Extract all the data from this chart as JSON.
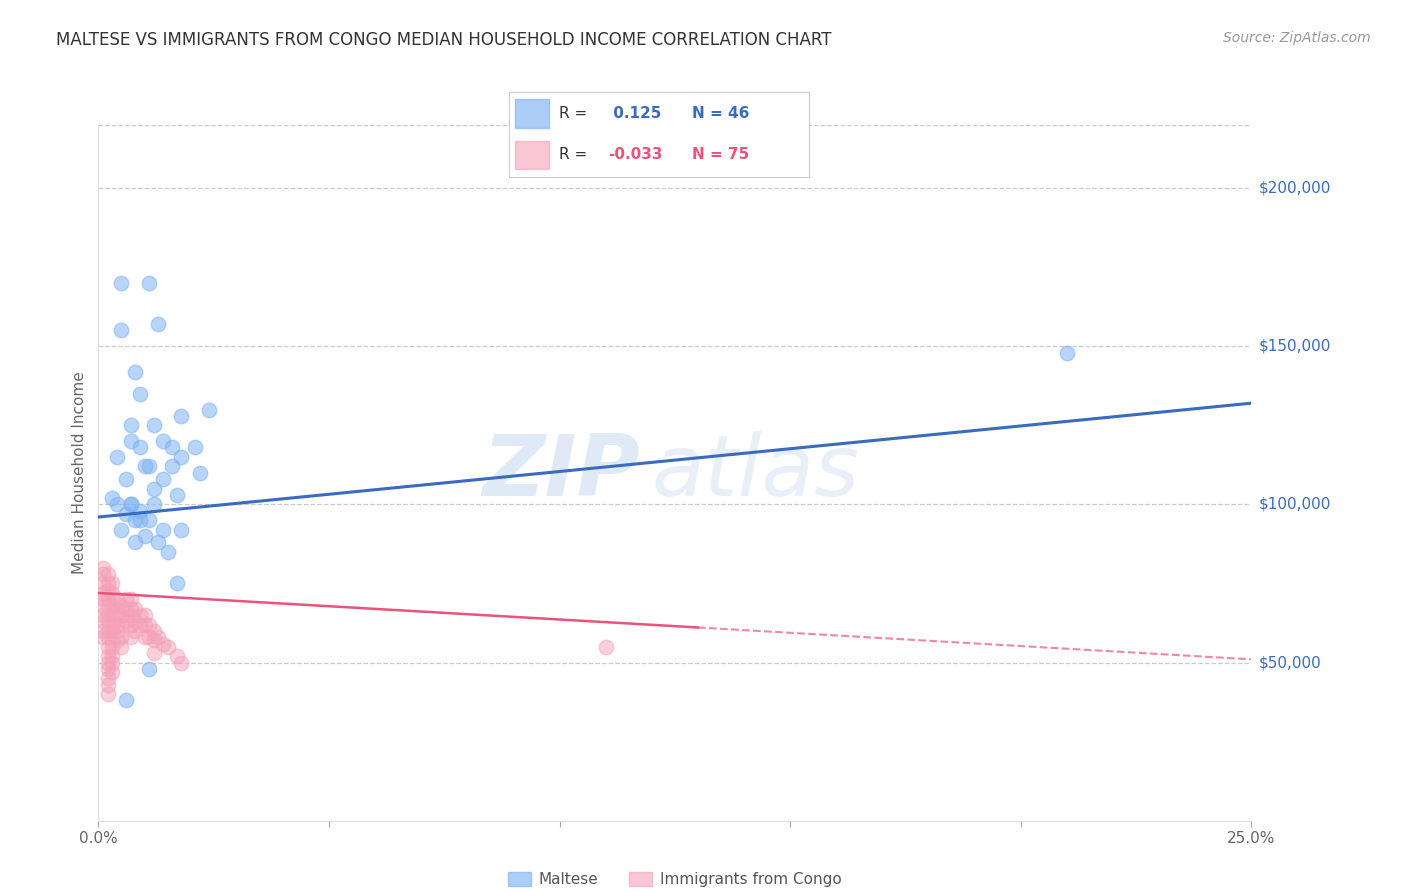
{
  "title": "MALTESE VS IMMIGRANTS FROM CONGO MEDIAN HOUSEHOLD INCOME CORRELATION CHART",
  "source": "Source: ZipAtlas.com",
  "ylabel": "Median Household Income",
  "xlim": [
    0.0,
    0.25
  ],
  "ylim": [
    0,
    220000
  ],
  "xticks": [
    0.0,
    0.05,
    0.1,
    0.15,
    0.2,
    0.25
  ],
  "xticklabels": [
    "0.0%",
    "",
    "",
    "",
    "",
    "25.0%"
  ],
  "ytick_values": [
    50000,
    100000,
    150000,
    200000
  ],
  "ytick_labels": [
    "$50,000",
    "$100,000",
    "$150,000",
    "$200,000"
  ],
  "background_color": "#ffffff",
  "grid_color": "#cccccc",
  "blue_color": "#7eb3f5",
  "pink_color": "#f5a0b8",
  "blue_line_color": "#3a6bbf",
  "pink_line_color": "#e8547a",
  "r_blue": 0.125,
  "n_blue": 46,
  "r_pink": -0.033,
  "n_pink": 75,
  "legend_label_blue": "Maltese",
  "legend_label_pink": "Immigrants from Congo",
  "watermark_zip": "ZIP",
  "watermark_atlas": "atlas",
  "blue_line_x0": 0.0,
  "blue_line_y0": 96000,
  "blue_line_x1": 0.25,
  "blue_line_y1": 132000,
  "pink_line_x0": 0.0,
  "pink_line_y0": 72000,
  "pink_line_x1": 0.25,
  "pink_line_y1": 51000,
  "blue_scatter_x": [
    0.005,
    0.011,
    0.005,
    0.013,
    0.018,
    0.009,
    0.008,
    0.007,
    0.012,
    0.016,
    0.009,
    0.004,
    0.007,
    0.011,
    0.014,
    0.018,
    0.021,
    0.006,
    0.01,
    0.014,
    0.017,
    0.003,
    0.007,
    0.012,
    0.016,
    0.009,
    0.011,
    0.014,
    0.008,
    0.006,
    0.01,
    0.013,
    0.018,
    0.022,
    0.007,
    0.009,
    0.005,
    0.012,
    0.015,
    0.008,
    0.004,
    0.017,
    0.011,
    0.006,
    0.21,
    0.024
  ],
  "blue_scatter_y": [
    170000,
    170000,
    155000,
    157000,
    128000,
    135000,
    142000,
    125000,
    125000,
    118000,
    118000,
    115000,
    120000,
    112000,
    120000,
    115000,
    118000,
    108000,
    112000,
    108000,
    103000,
    102000,
    100000,
    105000,
    112000,
    98000,
    95000,
    92000,
    95000,
    97000,
    90000,
    88000,
    92000,
    110000,
    100000,
    95000,
    92000,
    100000,
    85000,
    88000,
    100000,
    75000,
    48000,
    38000,
    148000,
    130000
  ],
  "pink_scatter_x": [
    0.001,
    0.001,
    0.001,
    0.001,
    0.001,
    0.001,
    0.001,
    0.001,
    0.001,
    0.001,
    0.002,
    0.002,
    0.002,
    0.002,
    0.002,
    0.002,
    0.002,
    0.002,
    0.002,
    0.002,
    0.002,
    0.002,
    0.002,
    0.002,
    0.002,
    0.002,
    0.003,
    0.003,
    0.003,
    0.003,
    0.003,
    0.003,
    0.003,
    0.003,
    0.003,
    0.003,
    0.003,
    0.004,
    0.004,
    0.004,
    0.004,
    0.004,
    0.004,
    0.005,
    0.005,
    0.005,
    0.005,
    0.005,
    0.006,
    0.006,
    0.006,
    0.007,
    0.007,
    0.007,
    0.007,
    0.007,
    0.008,
    0.008,
    0.008,
    0.009,
    0.009,
    0.01,
    0.01,
    0.01,
    0.011,
    0.011,
    0.012,
    0.012,
    0.012,
    0.013,
    0.014,
    0.015,
    0.017,
    0.018,
    0.11
  ],
  "pink_scatter_y": [
    80000,
    78000,
    75000,
    72000,
    70000,
    68000,
    65000,
    63000,
    60000,
    58000,
    78000,
    75000,
    73000,
    70000,
    68000,
    65000,
    63000,
    60000,
    58000,
    55000,
    52000,
    50000,
    48000,
    45000,
    43000,
    40000,
    75000,
    72000,
    68000,
    65000,
    62000,
    60000,
    57000,
    55000,
    52000,
    50000,
    47000,
    70000,
    67000,
    65000,
    62000,
    60000,
    57000,
    68000,
    65000,
    62000,
    58000,
    55000,
    70000,
    67000,
    63000,
    70000,
    67000,
    65000,
    62000,
    58000,
    67000,
    63000,
    60000,
    65000,
    62000,
    65000,
    62000,
    58000,
    62000,
    58000,
    60000,
    57000,
    53000,
    58000,
    56000,
    55000,
    52000,
    50000,
    55000
  ],
  "title_fontsize": 12,
  "source_fontsize": 10,
  "axis_label_fontsize": 11,
  "tick_fontsize": 11
}
